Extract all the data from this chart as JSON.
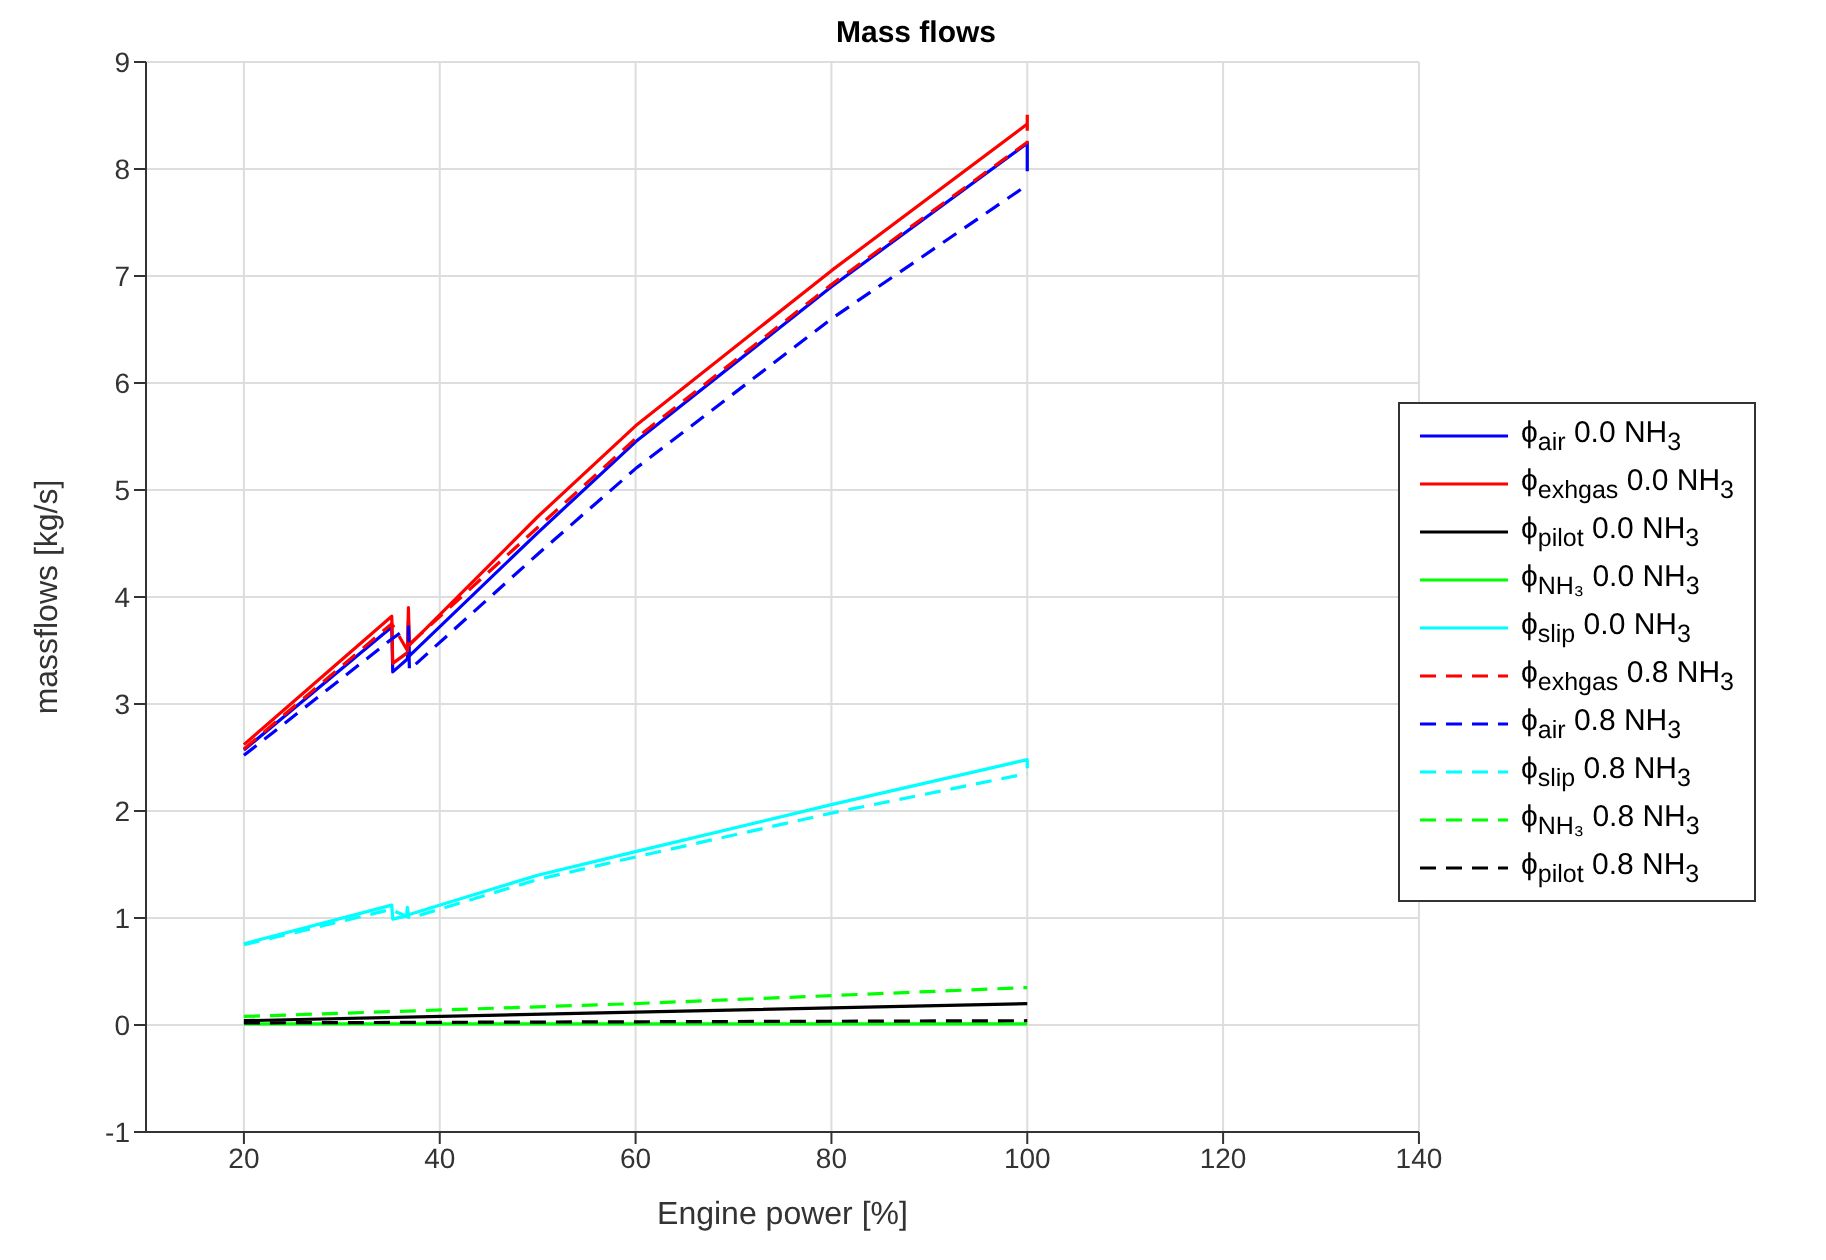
{
  "chart_data": {
    "type": "line",
    "title": "Mass flows",
    "xlabel": "Engine power [%]",
    "ylabel": "massflows [kg/s]",
    "xlim": [
      10,
      140
    ],
    "xticks": [
      20,
      40,
      60,
      80,
      100,
      120,
      140
    ],
    "ylim": [
      -1,
      9
    ],
    "yticks": [
      -1,
      0,
      1,
      2,
      3,
      4,
      5,
      6,
      7,
      8,
      9
    ],
    "grid": true,
    "legend": "right",
    "marker": "none",
    "series": [
      {
        "name": "ϕ$_{air}$ 0.0 NH$_{3}$",
        "color": "#0000ff",
        "line_style": "solid",
        "x": [
          20,
          35.1,
          35.2,
          36.7,
          36.8,
          36.9,
          50,
          60,
          80,
          100,
          100
        ],
        "values": [
          2.57,
          3.72,
          3.3,
          3.42,
          3.78,
          3.45,
          4.6,
          5.45,
          6.9,
          8.24,
          7.98
        ]
      },
      {
        "name": "ϕ$_{exhgas}$ 0.0 NH$_{3}$",
        "color": "#ff0000",
        "line_style": "solid",
        "x": [
          20,
          35.1,
          35.2,
          36.7,
          36.8,
          36.9,
          50,
          60,
          80,
          100
        ],
        "values": [
          2.62,
          3.82,
          3.38,
          3.48,
          3.9,
          3.55,
          4.75,
          5.6,
          7.05,
          8.42
        ]
      },
      {
        "name": "ϕ$_{pilot}$ 0.0 NH$_{3}$",
        "color": "#000000",
        "line_style": "solid",
        "x": [
          20,
          60,
          100
        ],
        "values": [
          0.04,
          0.12,
          0.2
        ]
      },
      {
        "name": "ϕ$_{NH₃}$ 0.0 NH$_{3}$",
        "color": "#00ff00",
        "line_style": "solid",
        "x": [
          20,
          100
        ],
        "values": [
          0.01,
          0.01
        ]
      },
      {
        "name": "ϕ$_{slip}$ 0.0 NH$_{3}$",
        "color": "#00ffff",
        "line_style": "solid",
        "x": [
          20,
          35.1,
          35.2,
          36.6,
          36.7,
          36.8,
          50,
          60,
          80,
          100,
          100
        ],
        "values": [
          0.76,
          1.12,
          0.99,
          1.02,
          1.1,
          1.03,
          1.4,
          1.62,
          2.06,
          2.48,
          2.4
        ]
      },
      {
        "name": "ϕ$_{exhgas}$ 0.8 NH$_{3}$",
        "color": "#ff0000",
        "line_style": "dashed",
        "x": [
          20,
          35.1,
          36.7,
          36.8,
          50,
          60,
          80,
          100,
          100
        ],
        "values": [
          2.58,
          3.75,
          3.5,
          3.55,
          4.65,
          5.48,
          6.92,
          8.25,
          8.57
        ]
      },
      {
        "name": "ϕ$_{air}$ 0.8 NH$_{3}$",
        "color": "#0000ff",
        "line_style": "dashed",
        "x": [
          20,
          35,
          36.8,
          36.9,
          50,
          60,
          80,
          100
        ],
        "values": [
          2.52,
          3.6,
          3.72,
          3.32,
          4.4,
          5.2,
          6.6,
          7.85
        ]
      },
      {
        "name": "ϕ$_{slip}$ 0.8 NH$_{3}$",
        "color": "#00ffff",
        "line_style": "dashed",
        "x": [
          20,
          35,
          37,
          50,
          60,
          80,
          100
        ],
        "values": [
          0.75,
          1.08,
          1.0,
          1.36,
          1.57,
          1.98,
          2.35
        ]
      },
      {
        "name": "ϕ$_{NH₃}$ 0.8 NH$_{3}$",
        "color": "#00ff00",
        "line_style": "dashed",
        "x": [
          20,
          60,
          100
        ],
        "values": [
          0.08,
          0.2,
          0.35
        ]
      },
      {
        "name": "ϕ$_{pilot}$ 0.8 NH$_{3}$",
        "color": "#000000",
        "line_style": "dashed",
        "x": [
          20,
          100
        ],
        "values": [
          0.02,
          0.04
        ]
      }
    ]
  }
}
